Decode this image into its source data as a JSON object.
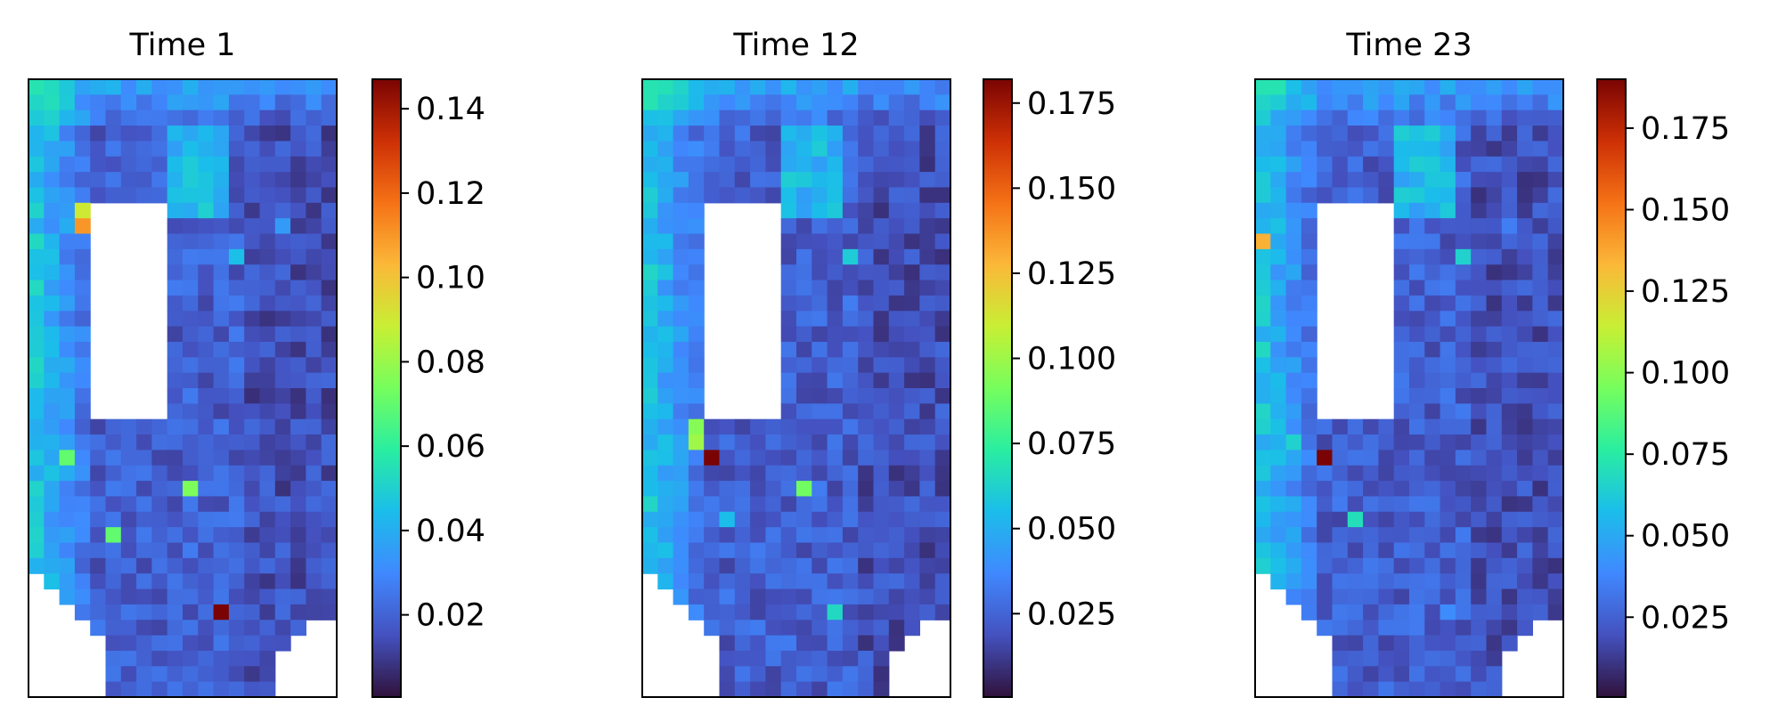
{
  "chart_data": [
    {
      "type": "heatmap",
      "title": "Time 1",
      "colormap": "turbo",
      "colorbar": {
        "min": 0.0005,
        "max": 0.147,
        "ticks": [
          0.02,
          0.04,
          0.06,
          0.08,
          0.1,
          0.12,
          0.14
        ],
        "tick_labels": [
          "0.02",
          "0.04",
          "0.06",
          "0.08",
          "0.10",
          "0.12",
          "0.14"
        ]
      },
      "grid": {
        "rows": 40,
        "cols": 20
      },
      "masked": {
        "hole": {
          "row_start": 8,
          "row_end": 21,
          "col_start": 4,
          "col_end": 8
        },
        "bottom_rows_from": 32,
        "bottom_right_rows_from": 35
      },
      "hotspots": [
        {
          "row": 34,
          "col": 12,
          "value": 0.147
        },
        {
          "row": 26,
          "col": 10,
          "value": 0.075
        },
        {
          "row": 29,
          "col": 5,
          "value": 0.07
        },
        {
          "row": 11,
          "col": 13,
          "value": 0.045
        },
        {
          "row": 9,
          "col": 16,
          "value": 0.035
        },
        {
          "row": 9,
          "col": 3,
          "value": 0.11
        },
        {
          "row": 8,
          "col": 3,
          "value": 0.09
        },
        {
          "row": 24,
          "col": 2,
          "value": 0.07
        }
      ],
      "seed": 11
    },
    {
      "type": "heatmap",
      "title": "Time 12",
      "colormap": "turbo",
      "colorbar": {
        "min": 0.0005,
        "max": 0.182,
        "ticks": [
          0.025,
          0.05,
          0.075,
          0.1,
          0.125,
          0.15,
          0.175
        ],
        "tick_labels": [
          "0.025",
          "0.050",
          "0.075",
          "0.100",
          "0.125",
          "0.150",
          "0.175"
        ]
      },
      "grid": {
        "rows": 40,
        "cols": 20
      },
      "masked": {
        "hole": {
          "row_start": 8,
          "row_end": 21,
          "col_start": 4,
          "col_end": 8
        },
        "bottom_rows_from": 32,
        "bottom_right_rows_from": 35
      },
      "hotspots": [
        {
          "row": 24,
          "col": 4,
          "value": 0.182
        },
        {
          "row": 23,
          "col": 3,
          "value": 0.1
        },
        {
          "row": 22,
          "col": 3,
          "value": 0.095
        },
        {
          "row": 26,
          "col": 10,
          "value": 0.09
        },
        {
          "row": 11,
          "col": 13,
          "value": 0.06
        },
        {
          "row": 28,
          "col": 5,
          "value": 0.055
        },
        {
          "row": 34,
          "col": 12,
          "value": 0.065
        }
      ],
      "seed": 23
    },
    {
      "type": "heatmap",
      "title": "Time 23",
      "colormap": "turbo",
      "colorbar": {
        "min": 0.0005,
        "max": 0.19,
        "ticks": [
          0.025,
          0.05,
          0.075,
          0.1,
          0.125,
          0.15,
          0.175
        ],
        "tick_labels": [
          "0.025",
          "0.050",
          "0.075",
          "0.100",
          "0.125",
          "0.150",
          "0.175"
        ]
      },
      "grid": {
        "rows": 40,
        "cols": 20
      },
      "masked": {
        "hole": {
          "row_start": 8,
          "row_end": 21,
          "col_start": 4,
          "col_end": 8
        },
        "bottom_rows_from": 32,
        "bottom_right_rows_from": 35
      },
      "hotspots": [
        {
          "row": 24,
          "col": 4,
          "value": 0.19
        },
        {
          "row": 28,
          "col": 6,
          "value": 0.07
        },
        {
          "row": 11,
          "col": 13,
          "value": 0.065
        },
        {
          "row": 23,
          "col": 2,
          "value": 0.065
        },
        {
          "row": 34,
          "col": 12,
          "value": 0.04
        },
        {
          "row": 9,
          "col": 16,
          "value": 0.035
        },
        {
          "row": 10,
          "col": 0,
          "value": 0.135
        }
      ],
      "seed": 37
    }
  ]
}
